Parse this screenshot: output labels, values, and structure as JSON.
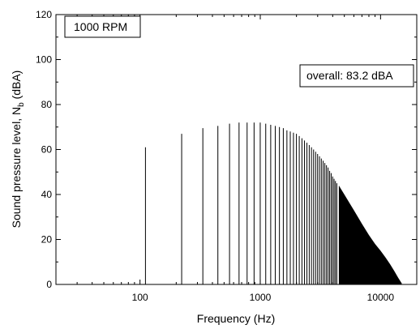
{
  "chart_data": {
    "type": "bar",
    "title": "",
    "xlabel": "Frequency (Hz)",
    "ylabel": "Sound pressure level, N",
    "ylabel_subscript": "b",
    "ylabel_unit": " (dBA)",
    "x_scale": "log",
    "xlim": [
      20,
      20000
    ],
    "ylim": [
      0,
      120
    ],
    "x_ticks": [
      100,
      1000,
      10000
    ],
    "x_tick_labels": [
      "100",
      "1000",
      "10000"
    ],
    "y_ticks": [
      0,
      20,
      40,
      60,
      80,
      100,
      120
    ],
    "y_tick_labels": [
      "0",
      "20",
      "40",
      "60",
      "80",
      "100",
      "120"
    ],
    "grid": false,
    "annotations": {
      "speed": "1000 RPM",
      "overall": "overall: 83.2 dBA"
    },
    "series": [
      {
        "fundamental_hz": 111,
        "harmonic_levels_dba": [
          61,
          67,
          69.5,
          70.5,
          71.5,
          72,
          72,
          72,
          72,
          71.5,
          71,
          70.5,
          70,
          69.5,
          68.5,
          68,
          67.5,
          67,
          66,
          65,
          64,
          63,
          62,
          61,
          60,
          59,
          58,
          57,
          56,
          55,
          54,
          53,
          52,
          50.5,
          49.5,
          48,
          47,
          46,
          45
        ],
        "envelope_hz": [
          4500,
          5000,
          6000,
          7000,
          8000,
          9000,
          10000,
          11000,
          12000,
          13000,
          14000,
          15000
        ],
        "envelope_dba": [
          44,
          40,
          33,
          27,
          22,
          18,
          15,
          12,
          9,
          6,
          3,
          0.5
        ]
      }
    ]
  }
}
